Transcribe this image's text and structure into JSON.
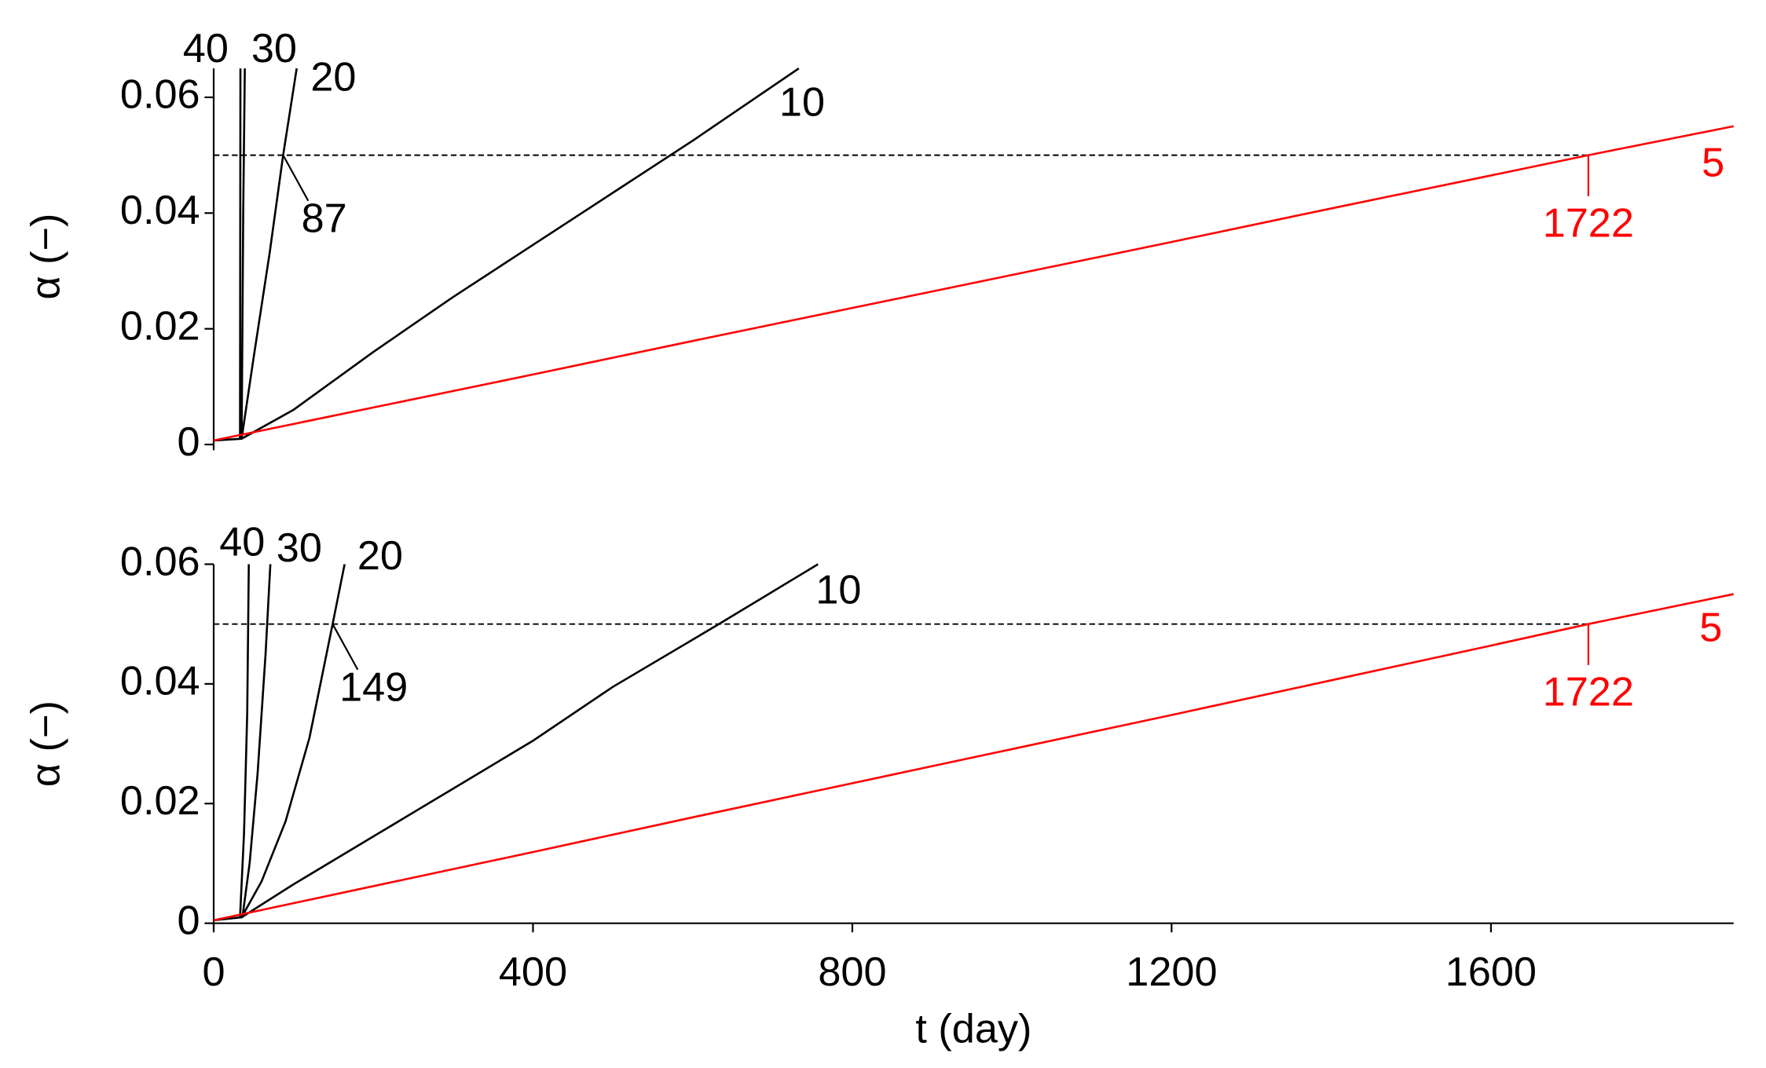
{
  "chart_data": [
    {
      "type": "line",
      "ylabel": "α (−)",
      "xlim": [
        0,
        1904
      ],
      "ylim": [
        0,
        0.065
      ],
      "yticks": [
        0,
        0.02,
        0.04,
        0.06
      ],
      "threshold": 0.05,
      "series": [
        {
          "name": "40",
          "color": "#000000",
          "x": [
            33,
            33.5
          ],
          "values": [
            0.001,
            0.065
          ]
        },
        {
          "name": "30",
          "color": "#000000",
          "x": [
            35,
            37,
            39
          ],
          "values": [
            0.001,
            0.04,
            0.065
          ]
        },
        {
          "name": "20",
          "color": "#000000",
          "x": [
            35,
            50,
            70,
            87,
            104
          ],
          "values": [
            0.001,
            0.015,
            0.033,
            0.05,
            0.065
          ]
        },
        {
          "name": "10",
          "color": "#000000",
          "x": [
            0,
            35,
            100,
            200,
            300,
            400,
            500,
            600,
            733
          ],
          "values": [
            0.0007,
            0.001,
            0.006,
            0.016,
            0.0255,
            0.0345,
            0.0435,
            0.0525,
            0.065
          ]
        },
        {
          "name": "5",
          "color": "#ff0000",
          "x": [
            0,
            200,
            400,
            600,
            800,
            1000,
            1200,
            1400,
            1600,
            1722,
            1904
          ],
          "values": [
            0.0007,
            0.0064,
            0.0121,
            0.0179,
            0.0236,
            0.0293,
            0.035,
            0.0408,
            0.0465,
            0.05,
            0.055
          ]
        }
      ],
      "annotations": [
        {
          "text": "87",
          "x": 87,
          "y": 0.05,
          "color": "#000000"
        },
        {
          "text": "1722",
          "x": 1722,
          "y": 0.05,
          "color": "#ff0000"
        }
      ]
    },
    {
      "type": "line",
      "xlabel": "t (day)",
      "ylabel": "α (−)",
      "xlim": [
        0,
        1904
      ],
      "ylim": [
        0,
        0.06
      ],
      "xticks": [
        0,
        400,
        800,
        1200,
        1600
      ],
      "yticks": [
        0,
        0.02,
        0.04,
        0.06
      ],
      "threshold": 0.05,
      "series": [
        {
          "name": "40",
          "color": "#000000",
          "x": [
            33,
            38,
            42,
            44
          ],
          "values": [
            0.001,
            0.015,
            0.035,
            0.06
          ]
        },
        {
          "name": "30",
          "color": "#000000",
          "x": [
            36,
            45,
            55,
            65,
            71
          ],
          "values": [
            0.001,
            0.01,
            0.025,
            0.045,
            0.06
          ]
        },
        {
          "name": "20",
          "color": "#000000",
          "x": [
            35,
            60,
            90,
            120,
            149,
            164
          ],
          "values": [
            0.001,
            0.007,
            0.017,
            0.031,
            0.05,
            0.06
          ]
        },
        {
          "name": "10",
          "color": "#000000",
          "x": [
            0,
            35,
            100,
            200,
            300,
            400,
            500,
            633,
            757
          ],
          "values": [
            0.0005,
            0.001,
            0.0065,
            0.0145,
            0.0225,
            0.0305,
            0.0395,
            0.05,
            0.06
          ]
        },
        {
          "name": "5",
          "color": "#ff0000",
          "x": [
            0,
            200,
            400,
            600,
            800,
            1000,
            1200,
            1400,
            1600,
            1722,
            1904
          ],
          "values": [
            0.0005,
            0.0062,
            0.0119,
            0.0177,
            0.0234,
            0.0291,
            0.0348,
            0.0406,
            0.0464,
            0.05,
            0.055
          ]
        }
      ],
      "annotations": [
        {
          "text": "149",
          "x": 149,
          "y": 0.05,
          "color": "#000000"
        },
        {
          "text": "1722",
          "x": 1722,
          "y": 0.05,
          "color": "#ff0000"
        }
      ]
    }
  ]
}
